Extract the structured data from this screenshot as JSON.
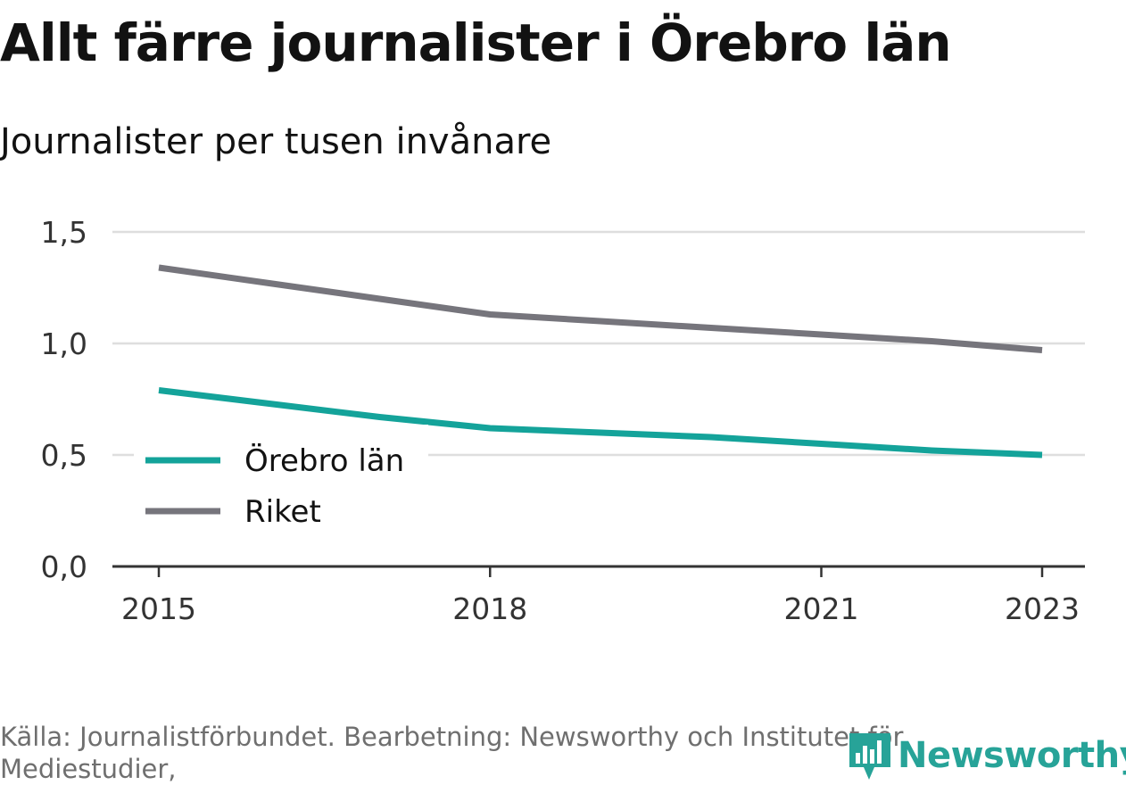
{
  "header": {
    "title": "Allt färre journalister i Örebro län",
    "subtitle": "Journalister per tusen invånare"
  },
  "footer": {
    "source": "Källa: Journalistförbundet. Bearbetning: Newsworthy och Institutet för Mediestudier,",
    "logo_text": "Newsworthy"
  },
  "colors": {
    "orebro": "#14a39a",
    "riket": "#76757c",
    "grid": "#dedede",
    "axis": "#333333",
    "logo": "#27a398"
  },
  "chart_data": {
    "type": "line",
    "x": [
      2015,
      2016,
      2017,
      2018,
      2019,
      2020,
      2021,
      2022,
      2023
    ],
    "x_ticks": [
      "2015",
      "2018",
      "2021",
      "2023"
    ],
    "y_ticks": [
      "0,0",
      "0,5",
      "1,0",
      "1,5"
    ],
    "ylim": [
      0,
      1.5
    ],
    "legend_position": "bottom-left",
    "grid": true,
    "series": [
      {
        "name": "Örebro län",
        "values": [
          0.79,
          0.73,
          0.67,
          0.62,
          0.6,
          0.58,
          0.55,
          0.52,
          0.5
        ]
      },
      {
        "name": "Riket",
        "values": [
          1.34,
          1.27,
          1.2,
          1.13,
          1.1,
          1.07,
          1.04,
          1.01,
          0.97
        ]
      }
    ]
  }
}
